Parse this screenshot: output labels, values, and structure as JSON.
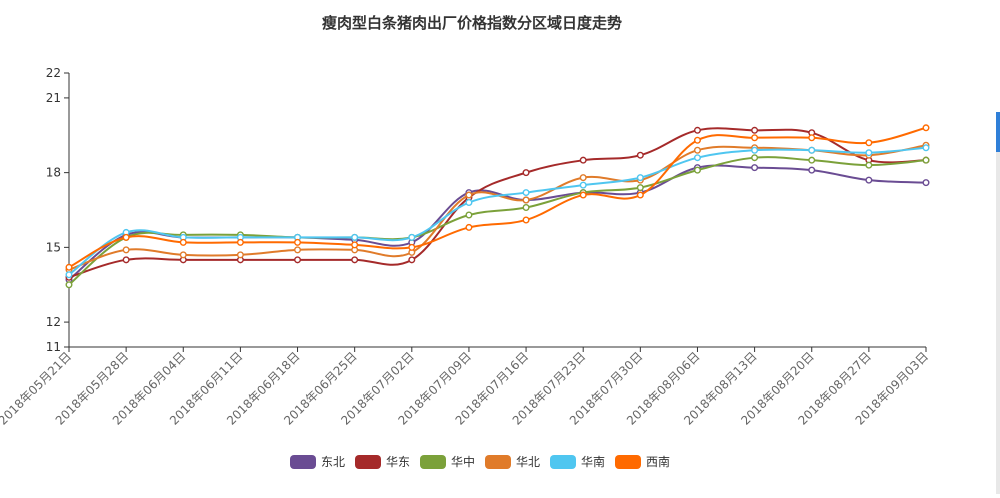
{
  "chart_data": {
    "type": "line",
    "title": "瘦肉型白条猪肉出厂价格指数分区域日度走势",
    "xlabel": "",
    "ylabel": "",
    "categories": [
      "2018年05月21日",
      "2018年05月28日",
      "2018年06月04日",
      "2018年06月11日",
      "2018年06月18日",
      "2018年06月25日",
      "2018年07月02日",
      "2018年07月09日",
      "2018年07月16日",
      "2018年07月23日",
      "2018年07月30日",
      "2018年08月06日",
      "2018年08月13日",
      "2018年08月20日",
      "2018年08月27日",
      "2018年09月03日"
    ],
    "ylim": [
      11,
      22
    ],
    "yticks": [
      11,
      12,
      15,
      18,
      21,
      22
    ],
    "grid": false,
    "legend_position": "bottom",
    "series": [
      {
        "name": "东北",
        "color": "#6a4c93",
        "values": [
          13.7,
          15.5,
          15.4,
          15.4,
          15.4,
          15.3,
          15.2,
          17.2,
          16.9,
          17.2,
          17.2,
          18.2,
          18.2,
          18.1,
          17.7,
          17.6
        ]
      },
      {
        "name": "华东",
        "color": "#a52a2a",
        "values": [
          13.8,
          14.5,
          14.5,
          14.5,
          14.5,
          14.5,
          14.5,
          17.0,
          18.0,
          18.5,
          18.7,
          19.7,
          19.7,
          19.6,
          18.5,
          18.5
        ]
      },
      {
        "name": "华中",
        "color": "#7ba13a",
        "values": [
          13.5,
          15.4,
          15.5,
          15.5,
          15.4,
          15.4,
          15.4,
          16.3,
          16.6,
          17.2,
          17.4,
          18.1,
          18.6,
          18.5,
          18.3,
          18.5
        ]
      },
      {
        "name": "华北",
        "color": "#e07b2a",
        "values": [
          14.1,
          14.9,
          14.7,
          14.7,
          14.9,
          14.9,
          14.8,
          17.1,
          16.9,
          17.8,
          17.7,
          18.9,
          19.0,
          18.9,
          18.7,
          19.1
        ]
      },
      {
        "name": "华南",
        "color": "#4fc6f0",
        "values": [
          13.9,
          15.6,
          15.4,
          15.4,
          15.4,
          15.4,
          15.4,
          16.8,
          17.2,
          17.5,
          17.8,
          18.6,
          18.9,
          18.9,
          18.8,
          19.0
        ]
      },
      {
        "name": "西南",
        "color": "#ff6a00",
        "values": [
          14.2,
          15.4,
          15.2,
          15.2,
          15.2,
          15.1,
          15.0,
          15.8,
          16.1,
          17.1,
          17.1,
          19.3,
          19.4,
          19.4,
          19.2,
          19.8
        ]
      }
    ]
  }
}
